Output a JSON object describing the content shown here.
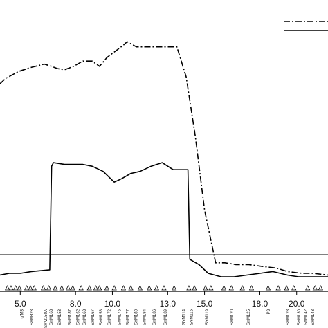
{
  "chart_data": {
    "type": "line",
    "title": "",
    "xlabel": "",
    "ylabel": "",
    "xlim": [
      3.9,
      21.7
    ],
    "ylim": [
      0,
      100
    ],
    "grid": false,
    "legend_position": "top-right",
    "x_ticks": [
      5.0,
      8.0,
      10.0,
      13.0,
      15.0,
      18.0,
      20.0
    ],
    "x_tick_labels": [
      "5.0",
      "8.0",
      "10.0",
      "13.0",
      "15.0",
      "18.0",
      "20.0"
    ],
    "threshold": 8.9,
    "series": [
      {
        "line_style": "dash-dot",
        "x": [
          3.9,
          4.2,
          4.9,
          5.5,
          6.3,
          6.7,
          7.0,
          7.4,
          7.9,
          8.4,
          8.9,
          9.3,
          9.7,
          10.2,
          10.6,
          10.8,
          11.3,
          12.0,
          12.8,
          13.5,
          14.0,
          14.5,
          15.0,
          15.6,
          16.1,
          16.7,
          17.4,
          18.1,
          18.9,
          19.5,
          20.3,
          20.9,
          21.7
        ],
        "values": [
          77.5,
          79.6,
          82.4,
          83.9,
          85.4,
          84.5,
          83.6,
          83.1,
          84.5,
          86.6,
          86.6,
          84.5,
          88.0,
          90.8,
          93.0,
          94.4,
          92.3,
          92.3,
          92.3,
          92.3,
          80.3,
          56.3,
          26.8,
          5.6,
          5.6,
          4.9,
          4.9,
          4.2,
          3.5,
          2.1,
          1.4,
          1.4,
          0.7
        ]
      },
      {
        "line_style": "solid",
        "x": [
          3.9,
          4.4,
          5.0,
          5.6,
          6.6,
          6.7,
          6.8,
          7.4,
          7.9,
          8.4,
          8.9,
          9.5,
          10.1,
          10.5,
          11.0,
          11.5,
          12.1,
          12.7,
          13.3,
          14.0,
          14.1,
          14.2,
          14.7,
          15.2,
          15.9,
          16.6,
          17.3,
          18.0,
          18.7,
          19.5,
          20.1,
          20.8,
          21.7
        ],
        "values": [
          0.7,
          1.4,
          1.4,
          2.1,
          2.8,
          44.4,
          45.8,
          45.1,
          45.1,
          45.1,
          44.4,
          42.3,
          38.0,
          39.4,
          41.5,
          42.3,
          44.4,
          45.8,
          43.0,
          43.0,
          43.0,
          7.0,
          4.9,
          1.4,
          0.0,
          0.0,
          0.7,
          1.4,
          2.1,
          0.7,
          0.0,
          0.0,
          0.0
        ]
      }
    ],
    "marker_positions": [
      4.3,
      4.5,
      4.75,
      4.95,
      5.35,
      5.55,
      5.75,
      6.25,
      6.55,
      6.9,
      7.25,
      7.6,
      7.85,
      8.3,
      8.75,
      9.1,
      9.3,
      9.7,
      10.1,
      10.6,
      11.0,
      11.5,
      12.0,
      12.4,
      12.8,
      13.35,
      14.15,
      14.45,
      15.05,
      15.35,
      16.05,
      16.45,
      17.05,
      17.55,
      18.45,
      19.0,
      19.45,
      19.85,
      20.6,
      21.0,
      21.3
    ],
    "marker_labels": [
      {
        "x": 5.15,
        "text": "gfM3"
      },
      {
        "x": 5.7,
        "text": "SYM823"
      },
      {
        "x": 6.45,
        "text": "SYM150A"
      },
      {
        "x": 6.75,
        "text": "SYM163"
      },
      {
        "x": 7.2,
        "text": "SYM153"
      },
      {
        "x": 7.75,
        "text": "SYM187"
      },
      {
        "x": 8.2,
        "text": "SYM162"
      },
      {
        "x": 8.55,
        "text": "SYM163"
      },
      {
        "x": 9.0,
        "text": "SYM167"
      },
      {
        "x": 9.45,
        "text": "SYM158"
      },
      {
        "x": 9.9,
        "text": "SYM172"
      },
      {
        "x": 10.45,
        "text": "SYM175"
      },
      {
        "x": 10.9,
        "text": "SYM177"
      },
      {
        "x": 11.35,
        "text": "SYM180"
      },
      {
        "x": 11.8,
        "text": "SYM184"
      },
      {
        "x": 12.35,
        "text": "SYM186"
      },
      {
        "x": 12.95,
        "text": "SYM189"
      },
      {
        "x": 13.95,
        "text": "SYM114"
      },
      {
        "x": 14.35,
        "text": "SYM115"
      },
      {
        "x": 15.2,
        "text": "SYM119"
      },
      {
        "x": 16.55,
        "text": "SYM120"
      },
      {
        "x": 17.45,
        "text": "SYM125"
      },
      {
        "x": 18.55,
        "text": "P3"
      },
      {
        "x": 19.6,
        "text": "SYM128"
      },
      {
        "x": 20.2,
        "text": "SYM130"
      },
      {
        "x": 20.55,
        "text": "SYM142"
      },
      {
        "x": 20.95,
        "text": "SYM143"
      }
    ]
  }
}
